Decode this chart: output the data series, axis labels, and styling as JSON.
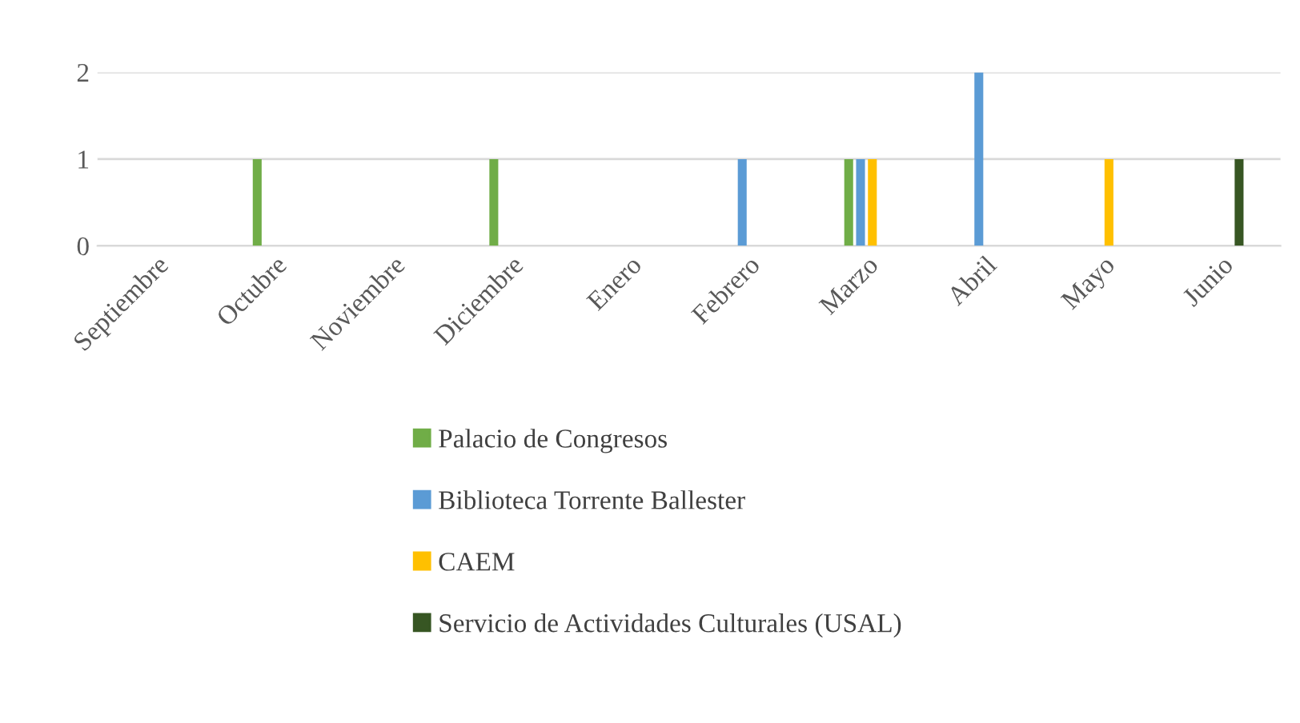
{
  "chart_data": {
    "type": "bar",
    "categories": [
      "Septiembre",
      "Octubre",
      "Noviembre",
      "Diciembre",
      "Enero",
      "Febrero",
      "Marzo",
      "Abril",
      "Mayo",
      "Junio"
    ],
    "series": [
      {
        "name": "Palacio de Congresos",
        "color": "#70ad47",
        "values": [
          null,
          1,
          null,
          1,
          null,
          null,
          1,
          null,
          null,
          null
        ]
      },
      {
        "name": "Biblioteca Torrente Ballester",
        "color": "#5b9bd5",
        "values": [
          null,
          null,
          null,
          null,
          null,
          1,
          1,
          2,
          null,
          null
        ]
      },
      {
        "name": "CAEM",
        "color": "#ffc000",
        "values": [
          null,
          null,
          null,
          null,
          null,
          null,
          1,
          null,
          1,
          null
        ]
      },
      {
        "name": "Servicio de Actividades Culturales (USAL)",
        "color": "#375623",
        "values": [
          null,
          null,
          null,
          null,
          null,
          null,
          null,
          null,
          null,
          1
        ]
      }
    ],
    "ylim": [
      0,
      2
    ],
    "yticks": [
      0,
      1,
      2
    ],
    "grid": "y",
    "legend": "bottom"
  }
}
